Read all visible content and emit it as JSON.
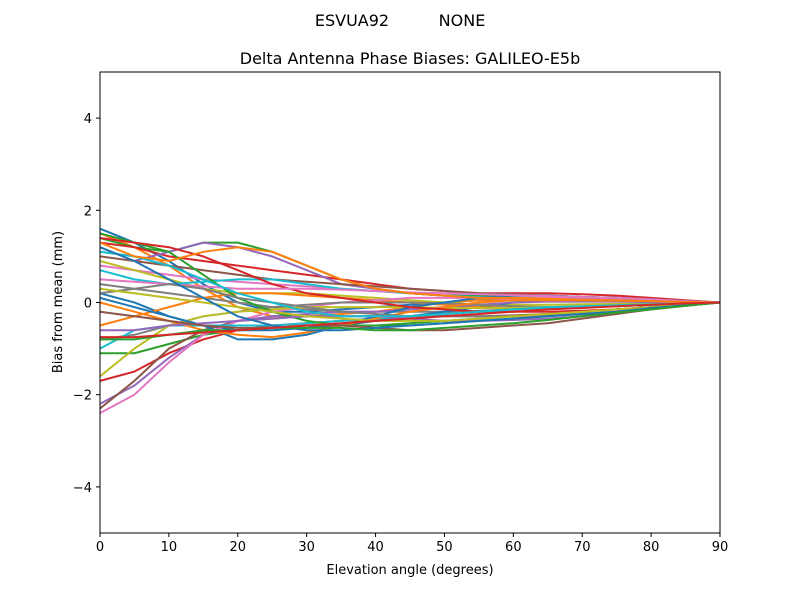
{
  "chart_data": {
    "type": "line",
    "suptitle_left": "ESVUA92",
    "suptitle_right": "NONE",
    "title": "Delta Antenna Phase Biases: GALILEO-E5b",
    "xlabel": "Elevation angle (degrees)",
    "ylabel": "Bias from mean (mm)",
    "xlim": [
      0,
      90
    ],
    "ylim": [
      -5,
      5
    ],
    "xticks": [
      0,
      10,
      20,
      30,
      40,
      50,
      60,
      70,
      80,
      90
    ],
    "yticks": [
      -4,
      -2,
      0,
      2,
      4
    ],
    "grid": false,
    "colors": [
      "#1f77b4",
      "#ff7f0e",
      "#2ca02c",
      "#d62728",
      "#9467bd",
      "#8c564b",
      "#e377c2",
      "#7f7f7f",
      "#bcbd22",
      "#17becf"
    ],
    "x": [
      0,
      5,
      10,
      15,
      20,
      25,
      30,
      35,
      40,
      45,
      50,
      55,
      60,
      65,
      70,
      75,
      80,
      85,
      90
    ],
    "series": [
      {
        "values": [
          1.6,
          1.3,
          0.9,
          0.4,
          0.0,
          -0.2,
          -0.2,
          -0.15,
          -0.1,
          -0.05,
          0.0,
          0.05,
          0.08,
          0.08,
          0.07,
          0.05,
          0.04,
          0.02,
          0
        ]
      },
      {
        "values": [
          1.5,
          1.2,
          0.8,
          0.3,
          -0.1,
          -0.3,
          -0.3,
          -0.25,
          -0.2,
          -0.1,
          0.0,
          0.05,
          0.05,
          0.05,
          0.04,
          0.03,
          0.02,
          0.01,
          0
        ]
      },
      {
        "values": [
          1.4,
          1.2,
          1.1,
          1.3,
          1.3,
          1.1,
          0.8,
          0.5,
          0.3,
          0.2,
          0.15,
          0.15,
          0.15,
          0.15,
          0.12,
          0.1,
          0.07,
          0.04,
          0
        ]
      },
      {
        "values": [
          1.3,
          1.2,
          1.0,
          0.9,
          0.8,
          0.7,
          0.6,
          0.5,
          0.4,
          0.3,
          0.25,
          0.2,
          0.2,
          0.2,
          0.18,
          0.15,
          0.1,
          0.05,
          0
        ]
      },
      {
        "values": [
          1.2,
          0.9,
          1.1,
          1.3,
          1.2,
          1.0,
          0.7,
          0.4,
          0.3,
          0.2,
          0.15,
          0.1,
          0.1,
          0.1,
          0.08,
          0.06,
          0.04,
          0.02,
          0
        ]
      },
      {
        "values": [
          1.0,
          0.9,
          0.8,
          0.7,
          0.6,
          0.5,
          0.45,
          0.4,
          0.35,
          0.3,
          0.25,
          0.2,
          0.18,
          0.15,
          0.12,
          0.1,
          0.07,
          0.03,
          0
        ]
      },
      {
        "values": [
          0.8,
          0.7,
          0.6,
          0.5,
          0.45,
          0.4,
          0.35,
          0.3,
          0.25,
          0.2,
          0.15,
          0.1,
          0.08,
          0.06,
          0.05,
          0.04,
          0.03,
          0.01,
          0
        ]
      },
      {
        "values": [
          0.4,
          0.3,
          0.2,
          0.1,
          0.0,
          -0.1,
          -0.15,
          -0.2,
          -0.2,
          -0.2,
          -0.2,
          -0.18,
          -0.15,
          -0.12,
          -0.1,
          -0.08,
          -0.05,
          -0.02,
          0
        ]
      },
      {
        "values": [
          0.9,
          0.7,
          0.5,
          0.3,
          0.2,
          0.2,
          0.2,
          0.15,
          0.1,
          0.05,
          0.0,
          -0.05,
          -0.05,
          -0.05,
          -0.04,
          -0.03,
          -0.02,
          -0.01,
          0
        ]
      },
      {
        "values": [
          0.7,
          0.5,
          0.4,
          0.45,
          0.5,
          0.5,
          0.4,
          0.3,
          0.25,
          0.2,
          0.15,
          0.12,
          0.1,
          0.08,
          0.06,
          0.05,
          0.03,
          0.01,
          0
        ]
      },
      {
        "values": [
          0.2,
          0.0,
          -0.3,
          -0.5,
          -0.6,
          -0.6,
          -0.55,
          -0.5,
          -0.4,
          -0.3,
          -0.2,
          -0.1,
          0.0,
          0.05,
          0.05,
          0.04,
          0.03,
          0.01,
          0
        ]
      },
      {
        "values": [
          -0.5,
          -0.3,
          -0.1,
          0.1,
          0.2,
          0.2,
          0.15,
          0.1,
          0.05,
          0.0,
          -0.05,
          -0.1,
          -0.12,
          -0.12,
          -0.1,
          -0.08,
          -0.05,
          -0.02,
          0
        ]
      },
      {
        "values": [
          -1.1,
          -1.1,
          -0.9,
          -0.7,
          -0.6,
          -0.55,
          -0.5,
          -0.5,
          -0.5,
          -0.45,
          -0.4,
          -0.35,
          -0.3,
          -0.25,
          -0.2,
          -0.15,
          -0.1,
          -0.05,
          0
        ]
      },
      {
        "values": [
          -1.7,
          -1.5,
          -1.1,
          -0.8,
          -0.6,
          -0.5,
          -0.45,
          -0.4,
          -0.35,
          -0.3,
          -0.25,
          -0.2,
          -0.15,
          -0.12,
          -0.1,
          -0.07,
          -0.05,
          -0.02,
          0
        ]
      },
      {
        "values": [
          -2.2,
          -1.8,
          -1.2,
          -0.7,
          -0.4,
          -0.3,
          -0.25,
          -0.2,
          -0.2,
          -0.15,
          -0.1,
          -0.05,
          0.0,
          0.02,
          0.02,
          0.02,
          0.01,
          0.01,
          0
        ]
      },
      {
        "values": [
          -2.3,
          -1.7,
          -1.0,
          -0.6,
          -0.4,
          -0.35,
          -0.3,
          -0.3,
          -0.3,
          -0.3,
          -0.3,
          -0.3,
          -0.28,
          -0.25,
          -0.2,
          -0.15,
          -0.1,
          -0.05,
          0
        ]
      },
      {
        "values": [
          -2.4,
          -2.0,
          -1.3,
          -0.7,
          -0.4,
          -0.2,
          -0.1,
          0.0,
          0.05,
          0.1,
          0.1,
          0.1,
          0.1,
          0.1,
          0.08,
          0.06,
          0.04,
          0.02,
          0
        ]
      },
      {
        "values": [
          -0.8,
          -0.7,
          -0.5,
          -0.3,
          -0.2,
          -0.1,
          -0.05,
          0.0,
          0.0,
          0.0,
          -0.02,
          -0.05,
          -0.08,
          -0.1,
          -0.1,
          -0.08,
          -0.05,
          -0.02,
          0
        ]
      },
      {
        "values": [
          -1.6,
          -1.0,
          -0.5,
          -0.3,
          -0.2,
          -0.15,
          -0.1,
          -0.1,
          -0.1,
          -0.1,
          -0.12,
          -0.12,
          -0.12,
          -0.1,
          -0.08,
          -0.06,
          -0.04,
          -0.02,
          0
        ]
      },
      {
        "values": [
          -1.0,
          -0.6,
          -0.5,
          -0.5,
          -0.5,
          -0.5,
          -0.45,
          -0.4,
          -0.35,
          -0.3,
          -0.25,
          -0.2,
          -0.15,
          -0.12,
          -0.1,
          -0.08,
          -0.05,
          -0.02,
          0
        ]
      },
      {
        "values": [
          0.1,
          -0.1,
          -0.3,
          -0.5,
          -0.8,
          -0.8,
          -0.7,
          -0.5,
          -0.3,
          -0.1,
          0.0,
          0.1,
          0.15,
          0.15,
          0.12,
          0.1,
          0.07,
          0.03,
          0
        ]
      },
      {
        "values": [
          0.0,
          -0.2,
          -0.4,
          -0.6,
          -0.7,
          -0.75,
          -0.65,
          -0.5,
          -0.35,
          -0.2,
          -0.1,
          0.0,
          0.05,
          0.05,
          0.05,
          0.04,
          0.03,
          0.01,
          0
        ]
      },
      {
        "values": [
          1.5,
          1.3,
          1.1,
          0.6,
          0.1,
          -0.2,
          -0.4,
          -0.5,
          -0.5,
          -0.5,
          -0.45,
          -0.4,
          -0.35,
          -0.3,
          -0.25,
          -0.2,
          -0.12,
          -0.06,
          0
        ]
      },
      {
        "values": [
          1.4,
          1.3,
          1.2,
          1.0,
          0.7,
          0.4,
          0.2,
          0.1,
          0.0,
          -0.1,
          -0.15,
          -0.2,
          -0.2,
          -0.2,
          -0.18,
          -0.15,
          -0.1,
          -0.05,
          0
        ]
      },
      {
        "values": [
          -0.6,
          -0.6,
          -0.5,
          -0.45,
          -0.4,
          -0.35,
          -0.3,
          -0.3,
          -0.3,
          -0.35,
          -0.4,
          -0.4,
          -0.38,
          -0.35,
          -0.3,
          -0.22,
          -0.15,
          -0.07,
          0
        ]
      },
      {
        "values": [
          -0.2,
          -0.3,
          -0.4,
          -0.5,
          -0.55,
          -0.55,
          -0.5,
          -0.5,
          -0.55,
          -0.6,
          -0.6,
          -0.55,
          -0.5,
          -0.45,
          -0.35,
          -0.25,
          -0.15,
          -0.07,
          0
        ]
      },
      {
        "values": [
          0.5,
          0.45,
          0.4,
          0.35,
          0.3,
          0.3,
          0.3,
          0.28,
          0.25,
          0.22,
          0.2,
          0.18,
          0.16,
          0.14,
          0.12,
          0.1,
          0.07,
          0.03,
          0
        ]
      },
      {
        "values": [
          0.2,
          0.3,
          0.4,
          0.3,
          0.1,
          0.0,
          -0.1,
          -0.2,
          -0.25,
          -0.3,
          -0.3,
          -0.3,
          -0.3,
          -0.28,
          -0.25,
          -0.2,
          -0.12,
          -0.06,
          0
        ]
      },
      {
        "values": [
          0.3,
          0.2,
          0.1,
          0.0,
          -0.1,
          -0.2,
          -0.3,
          -0.35,
          -0.4,
          -0.4,
          -0.4,
          -0.35,
          -0.3,
          -0.25,
          -0.2,
          -0.15,
          -0.1,
          -0.05,
          0
        ]
      },
      {
        "values": [
          1.1,
          1.0,
          0.8,
          0.5,
          0.2,
          0.0,
          -0.2,
          -0.3,
          -0.3,
          -0.3,
          -0.25,
          -0.2,
          -0.15,
          -0.1,
          -0.08,
          -0.06,
          -0.04,
          -0.02,
          0
        ]
      },
      {
        "values": [
          1.2,
          0.9,
          0.5,
          0.1,
          -0.3,
          -0.5,
          -0.6,
          -0.6,
          -0.55,
          -0.5,
          -0.45,
          -0.4,
          -0.35,
          -0.3,
          -0.25,
          -0.2,
          -0.12,
          -0.06,
          0
        ]
      },
      {
        "values": [
          1.3,
          1.0,
          0.9,
          1.1,
          1.2,
          1.1,
          0.8,
          0.5,
          0.3,
          0.2,
          0.15,
          0.1,
          0.1,
          0.08,
          0.06,
          0.05,
          0.03,
          0.01,
          0
        ]
      },
      {
        "values": [
          -0.8,
          -0.8,
          -0.7,
          -0.6,
          -0.6,
          -0.55,
          -0.55,
          -0.55,
          -0.6,
          -0.6,
          -0.55,
          -0.5,
          -0.45,
          -0.38,
          -0.3,
          -0.22,
          -0.15,
          -0.07,
          0
        ]
      },
      {
        "values": [
          -0.75,
          -0.75,
          -0.7,
          -0.65,
          -0.6,
          -0.55,
          -0.5,
          -0.45,
          -0.4,
          -0.35,
          -0.3,
          -0.25,
          -0.2,
          -0.15,
          -0.12,
          -0.08,
          -0.05,
          -0.02,
          0
        ]
      }
    ]
  }
}
